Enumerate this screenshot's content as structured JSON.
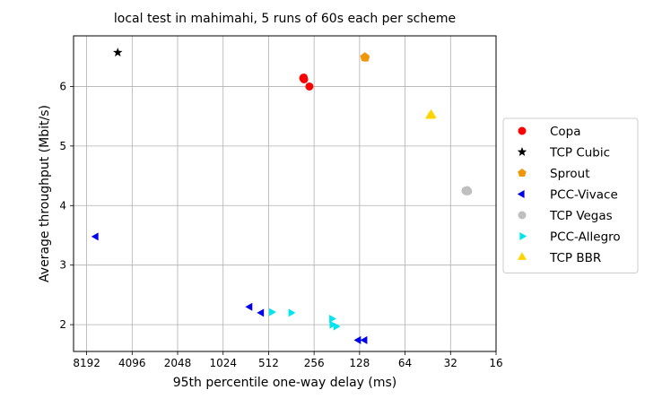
{
  "chart_data": {
    "type": "scatter",
    "title": "local test in mahimahi, 5 runs of 60s each per scheme",
    "xlabel": "95th percentile one-way delay (ms)",
    "ylabel": "Average throughput (Mbit/s)",
    "x_scale": "log2",
    "x_inverted": true,
    "xlim": [
      10000,
      16
    ],
    "ylim": [
      1.55,
      6.85
    ],
    "x_ticks": [
      8192,
      4096,
      2048,
      1024,
      512,
      256,
      128,
      64,
      32,
      16
    ],
    "x_tick_labels": [
      "8192",
      "4096",
      "2048",
      "1024",
      "512",
      "256",
      "128",
      "64",
      "32",
      "16"
    ],
    "y_ticks": [
      2,
      3,
      4,
      5,
      6
    ],
    "y_tick_labels": [
      "2",
      "3",
      "4",
      "5",
      "6"
    ],
    "grid": true,
    "legend_position": "outside-right",
    "series": [
      {
        "name": "Copa",
        "color": "#ff0000",
        "marker": "circle",
        "points": [
          [
            300,
            6.15
          ],
          [
            298,
            6.12
          ],
          [
            300,
            6.13
          ],
          [
            275,
            6.0
          ],
          [
            302,
            6.14
          ]
        ]
      },
      {
        "name": "TCP Cubic",
        "color": "#000000",
        "marker": "star",
        "points": [
          [
            5100,
            6.57
          ]
        ]
      },
      {
        "name": "Sprout",
        "color": "#f0960a",
        "marker": "pentagon",
        "points": [
          [
            118,
            6.49
          ],
          [
            119,
            6.49
          ],
          [
            118,
            6.5
          ],
          [
            117,
            6.48
          ],
          [
            118,
            6.49
          ]
        ]
      },
      {
        "name": "PCC-Vivace",
        "color": "#0000ee",
        "marker": "triangle-left",
        "points": [
          [
            7100,
            3.48
          ],
          [
            680,
            2.3
          ],
          [
            570,
            2.2
          ],
          [
            130,
            1.74
          ],
          [
            118,
            1.74
          ]
        ]
      },
      {
        "name": "TCP Vegas",
        "color": "#bfbfbf",
        "marker": "circle",
        "points": [
          [
            25,
            4.25
          ],
          [
            24.5,
            4.24
          ],
          [
            25.5,
            4.25
          ],
          [
            24.8,
            4.26
          ],
          [
            25.2,
            4.24
          ]
        ]
      },
      {
        "name": "PCC-Allegro",
        "color": "#00e5ee",
        "marker": "triangle-right",
        "points": [
          [
            490,
            2.21
          ],
          [
            365,
            2.2
          ],
          [
            196,
            2.1
          ],
          [
            195,
            2.0
          ],
          [
            184,
            1.97
          ]
        ]
      },
      {
        "name": "TCP BBR",
        "color": "#ffd400",
        "marker": "triangle-up",
        "points": [
          [
            43,
            5.52
          ],
          [
            44,
            5.5
          ],
          [
            43,
            5.53
          ],
          [
            42.5,
            5.51
          ],
          [
            43.5,
            5.5
          ]
        ]
      }
    ]
  }
}
